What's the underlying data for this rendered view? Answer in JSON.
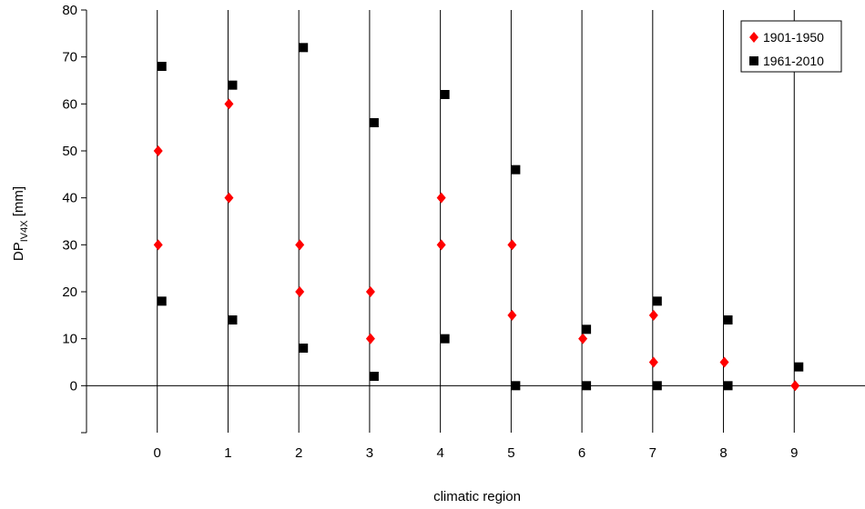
{
  "chart_data": {
    "type": "scatter",
    "title": "",
    "xlabel": "climatic region",
    "ylabel": {
      "main": "DP",
      "sub": "IV4X",
      "unit": " [mm]"
    },
    "xlim": [
      -1,
      10
    ],
    "ylim": [
      -10,
      80
    ],
    "x_ticks": [
      0,
      1,
      2,
      3,
      4,
      5,
      6,
      7,
      8,
      9
    ],
    "y_ticks": [
      0,
      10,
      20,
      30,
      40,
      50,
      60,
      70,
      80
    ],
    "grid": "vertical lines at each x tick, horizontal line at y=0",
    "legend": {
      "position": "top-right"
    },
    "series": [
      {
        "name": "1901-1950",
        "color": "#ff0000",
        "marker": "diamond",
        "points": [
          [
            0,
            50
          ],
          [
            0,
            30
          ],
          [
            1,
            60
          ],
          [
            1,
            40
          ],
          [
            2,
            30
          ],
          [
            2,
            20
          ],
          [
            3,
            20
          ],
          [
            3,
            10
          ],
          [
            4,
            40
          ],
          [
            4,
            30
          ],
          [
            5,
            30
          ],
          [
            5,
            15
          ],
          [
            6,
            10
          ],
          [
            7,
            15
          ],
          [
            7,
            5
          ],
          [
            8,
            5
          ],
          [
            9,
            0
          ]
        ]
      },
      {
        "name": "1961-2010",
        "color": "#000000",
        "marker": "square",
        "points": [
          [
            0,
            68
          ],
          [
            0,
            18
          ],
          [
            1,
            64
          ],
          [
            1,
            14
          ],
          [
            2,
            72
          ],
          [
            2,
            8
          ],
          [
            3,
            56
          ],
          [
            3,
            2
          ],
          [
            4,
            62
          ],
          [
            4,
            10
          ],
          [
            5,
            46
          ],
          [
            5,
            0
          ],
          [
            6,
            12
          ],
          [
            6,
            0
          ],
          [
            7,
            18
          ],
          [
            7,
            0
          ],
          [
            8,
            14
          ],
          [
            8,
            0
          ],
          [
            9,
            4
          ]
        ]
      }
    ]
  }
}
